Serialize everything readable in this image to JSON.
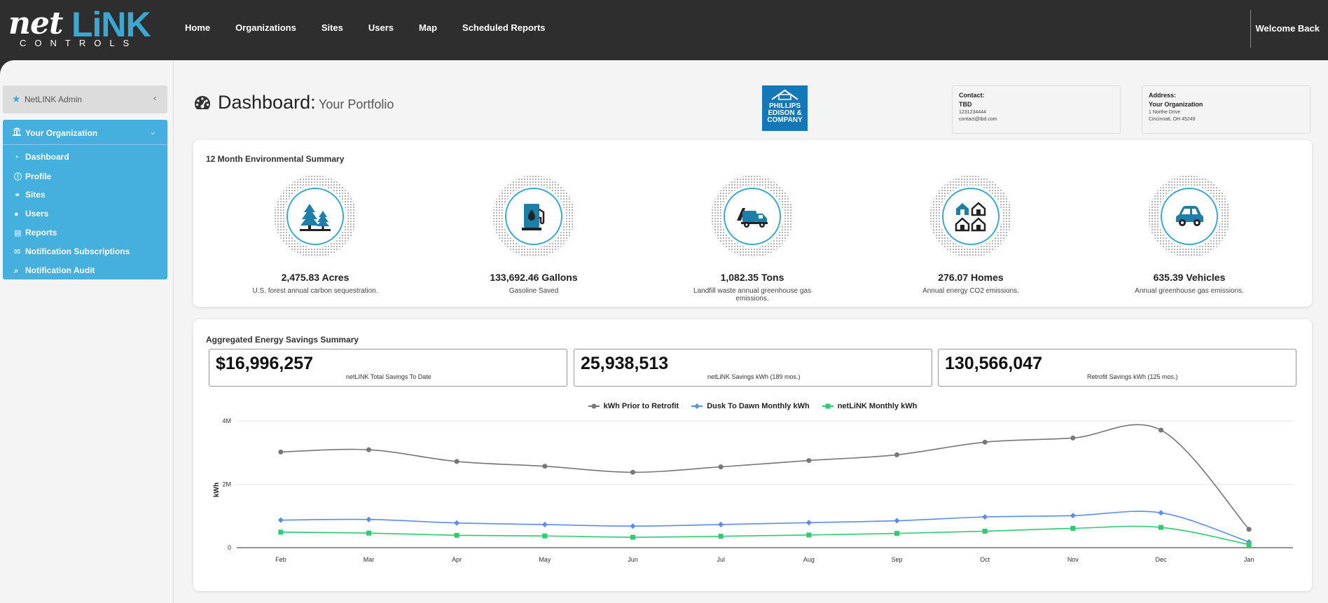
{
  "header": {
    "logo_net": "net",
    "logo_link": "LiNK",
    "logo_controls": "CONTROLS",
    "nav": [
      "Home",
      "Organizations",
      "Sites",
      "Users",
      "Map",
      "Scheduled Reports"
    ],
    "welcome": "Welcome Back"
  },
  "sidebar": {
    "admin_label": "NetLINK Admin",
    "org_label": "Your Organization",
    "items": [
      {
        "label": "Dashboard",
        "icon": "dashboard-icon"
      },
      {
        "label": "Profile",
        "icon": "info-icon"
      },
      {
        "label": "Sites",
        "icon": "sites-icon"
      },
      {
        "label": "Users",
        "icon": "user-icon"
      },
      {
        "label": "Reports",
        "icon": "reports-icon"
      },
      {
        "label": "Notification Subscriptions",
        "icon": "envelope-icon"
      },
      {
        "label": "Notification Audit",
        "icon": "search-icon"
      }
    ]
  },
  "page": {
    "title": "Dashboard:",
    "subtitle": "Your Portfolio",
    "company_logo_lines": [
      "PHILLIPS",
      "EDISON &",
      "COMPANY"
    ],
    "contact": {
      "label": "Contact:",
      "name": "TBD",
      "phone": "1231234444",
      "email": "contact@tbd.com"
    },
    "address": {
      "label": "Address:",
      "name": "Your Organization",
      "line1": "1 Northe Drive",
      "line2": "Cincinnati, OH 45249"
    }
  },
  "environment": {
    "title": "12 Month Environmental Summary",
    "items": [
      {
        "value": "2,475.83 Acres",
        "desc": "U.S. forest annual carbon sequestration.",
        "icon": "trees-icon"
      },
      {
        "value": "133,692.46 Gallons",
        "desc": "Gasoline Saved",
        "icon": "gas-pump-icon"
      },
      {
        "value": "1,082.35 Tons",
        "desc": "Landfill waste annual greenhouse gas emissions.",
        "icon": "garbage-truck-icon"
      },
      {
        "value": "276.07 Homes",
        "desc": "Annual energy CO2 emissions.",
        "icon": "homes-icon"
      },
      {
        "value": "635.39 Vehicles",
        "desc": "Annual greenhouse gas emissions.",
        "icon": "car-icon"
      }
    ]
  },
  "savings": {
    "title": "Aggregated Energy Savings Summary",
    "stats": [
      {
        "value": "$16,996,257",
        "label": "netLINK Total Savings To Date"
      },
      {
        "value": "25,938,513",
        "label": "netLiNK Savings kWh (189 mos.)"
      },
      {
        "value": "130,566,047",
        "label": "Retrofit Savings kWh (125 mos.)"
      }
    ]
  },
  "chart_data": {
    "type": "line",
    "ylabel": "kWh",
    "y_ticks": [
      "0",
      "2M",
      "4M"
    ],
    "ylim": [
      0,
      4000000
    ],
    "categories": [
      "Feb",
      "Mar",
      "Apr",
      "May",
      "Jun",
      "Jul",
      "Aug",
      "Sep",
      "Oct",
      "Nov",
      "Dec",
      "Jan"
    ],
    "legend_position": "top-center",
    "grid": true,
    "series": [
      {
        "name": "kWh Prior to Retrofit",
        "color": "#777777",
        "marker": "circle",
        "values": [
          3020000,
          3090000,
          2720000,
          2570000,
          2380000,
          2550000,
          2750000,
          2930000,
          3330000,
          3460000,
          3710000,
          580000
        ]
      },
      {
        "name": "Dusk To Dawn Monthly kWh",
        "color": "#5b8def",
        "marker": "diamond",
        "values": [
          870000,
          890000,
          780000,
          730000,
          680000,
          730000,
          790000,
          850000,
          970000,
          1010000,
          1100000,
          180000
        ]
      },
      {
        "name": "netLiNK Monthly kWh",
        "color": "#2ecc71",
        "marker": "square",
        "values": [
          490000,
          460000,
          390000,
          370000,
          330000,
          360000,
          400000,
          450000,
          520000,
          610000,
          640000,
          100000
        ]
      }
    ]
  }
}
